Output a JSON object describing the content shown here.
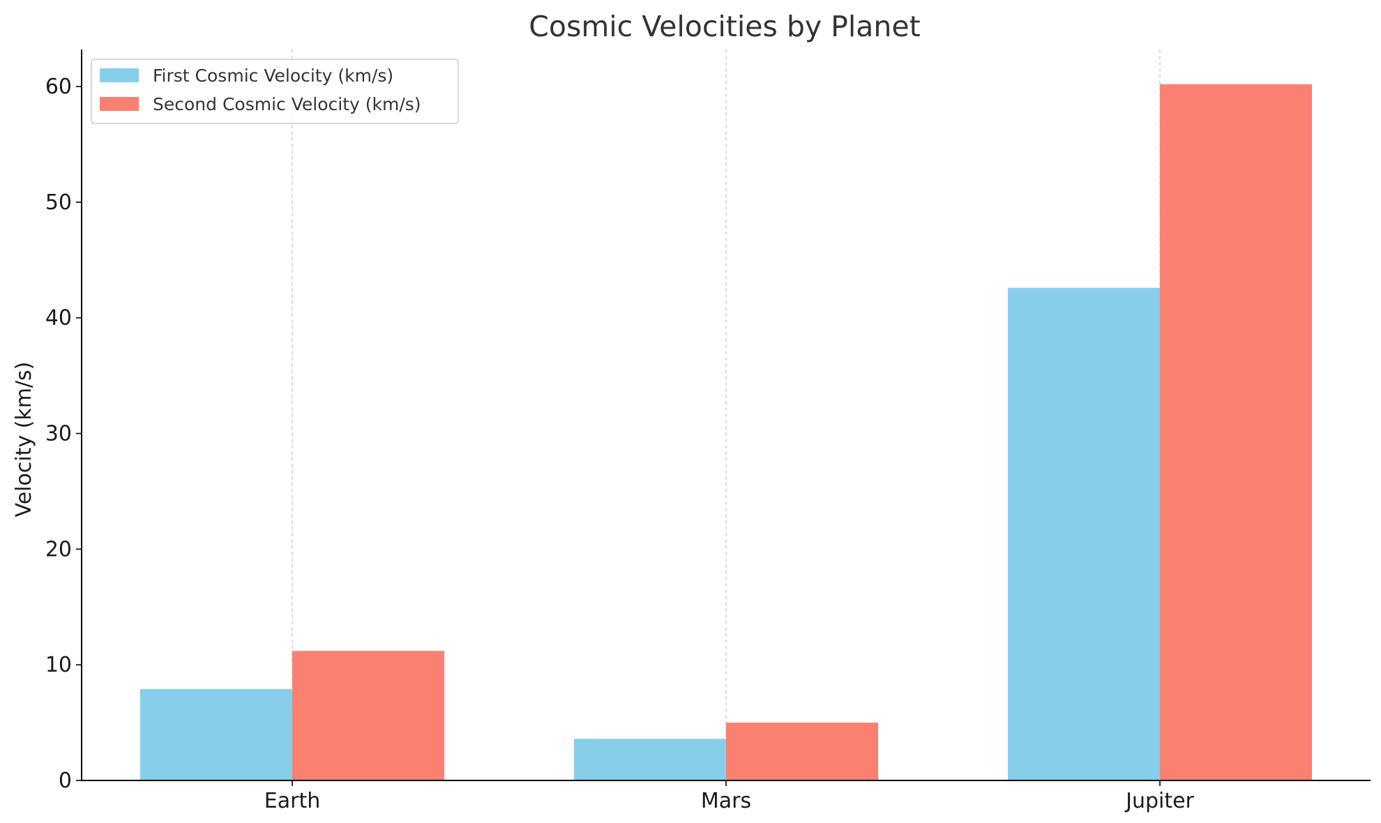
{
  "chart_data": {
    "type": "bar",
    "title": "Cosmic Velocities by Planet",
    "xlabel": "",
    "ylabel": "Velocity (km/s)",
    "categories": [
      "Earth",
      "Mars",
      "Jupiter"
    ],
    "series": [
      {
        "name": "First Cosmic Velocity (km/s)",
        "values": [
          7.9,
          3.6,
          42.6
        ],
        "color": "#87CEEB"
      },
      {
        "name": "Second Cosmic Velocity (km/s)",
        "values": [
          11.2,
          5.0,
          60.2
        ],
        "color": "#FA8072"
      }
    ],
    "ylim": [
      0,
      63.2
    ],
    "yticks": [
      0,
      10,
      20,
      30,
      40,
      50,
      60
    ],
    "grid": "x-axis dashed",
    "legend_position": "upper-left"
  }
}
